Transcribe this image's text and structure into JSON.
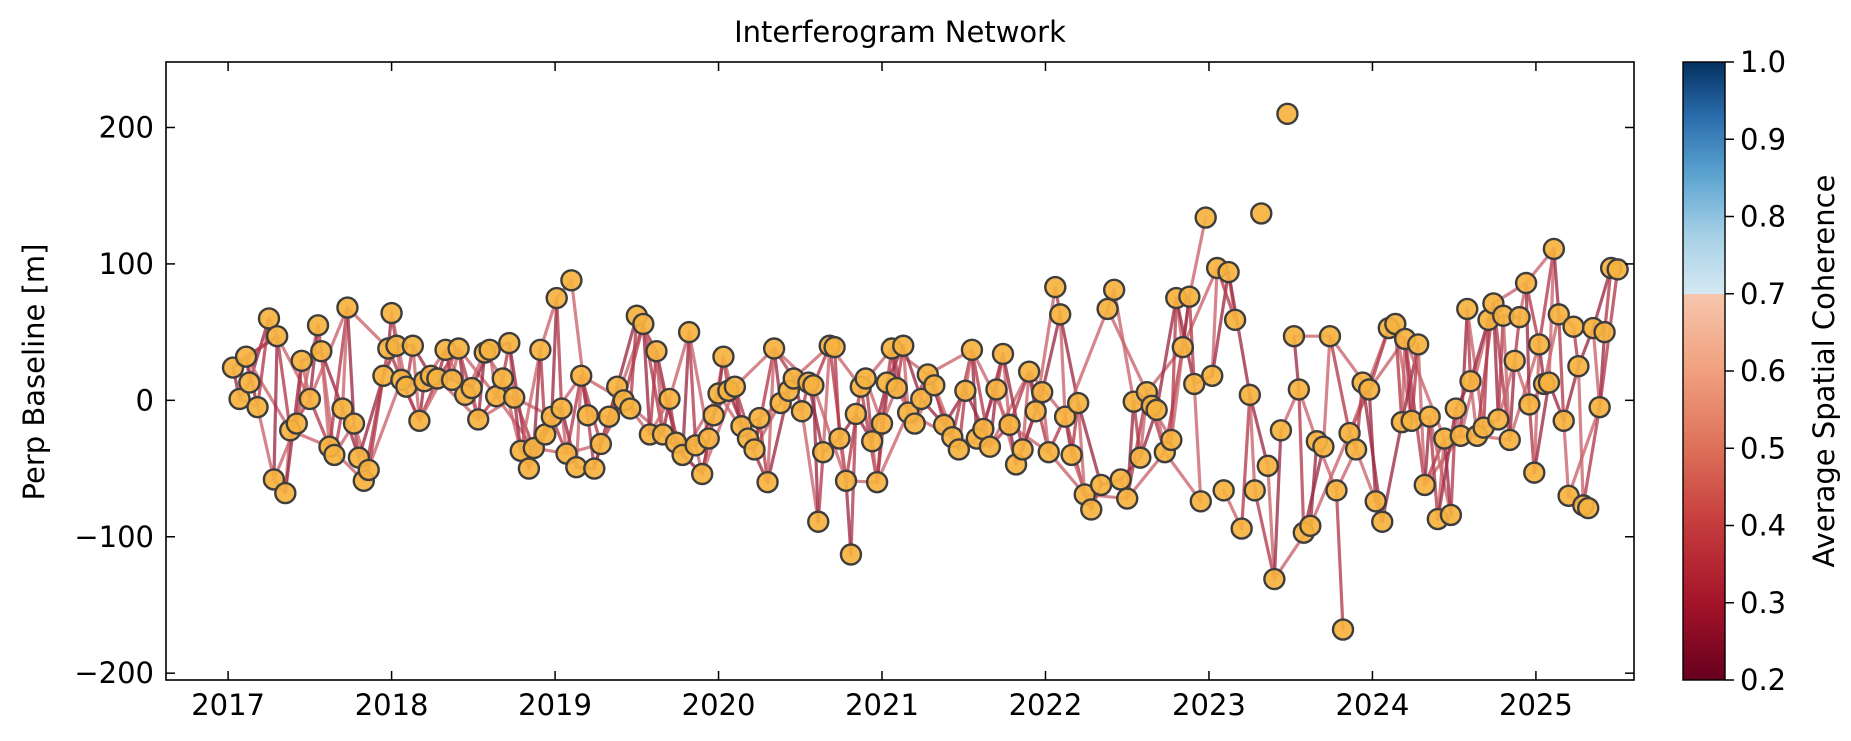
{
  "chart_data": {
    "type": "scatter",
    "title": "Interferogram Network",
    "xlabel": "",
    "ylabel": "Perp Baseline [m]",
    "x_ticks": [
      2017,
      2018,
      2019,
      2020,
      2021,
      2022,
      2023,
      2024,
      2025
    ],
    "y_ticks": [
      -200,
      -100,
      0,
      100,
      200
    ],
    "y_tick_labels": [
      "−200",
      "−100",
      "0",
      "100",
      "200"
    ],
    "xlim": [
      2016.62,
      2025.6
    ],
    "ylim": [
      -205,
      248
    ],
    "grid": false,
    "colorbar": {
      "label": "Average Spatial Coherence",
      "range": [
        0.2,
        1.0
      ],
      "ticks": [
        "0.2",
        "0.3",
        "0.4",
        "0.5",
        "0.6",
        "0.7",
        "0.8",
        "0.9",
        "1.0"
      ],
      "colormap": "RdBu"
    },
    "marker": {
      "fill": "#f6b23f",
      "edge": "#3d3d3d"
    },
    "edge_colors": [
      "#9b2c45",
      "#b23a4c",
      "#c9646c"
    ],
    "points": [
      [
        2017.03,
        24
      ],
      [
        2017.07,
        1
      ],
      [
        2017.13,
        13
      ],
      [
        2017.11,
        32
      ],
      [
        2017.18,
        -5
      ],
      [
        2017.25,
        60
      ],
      [
        2017.3,
        47
      ],
      [
        2017.28,
        -58
      ],
      [
        2017.35,
        -68
      ],
      [
        2017.38,
        -22
      ],
      [
        2017.42,
        -17
      ],
      [
        2017.45,
        29
      ],
      [
        2017.5,
        1
      ],
      [
        2017.55,
        55
      ],
      [
        2017.57,
        36
      ],
      [
        2017.62,
        -34
      ],
      [
        2017.65,
        -40
      ],
      [
        2017.7,
        -6
      ],
      [
        2017.73,
        68
      ],
      [
        2017.77,
        -17
      ],
      [
        2017.8,
        -42
      ],
      [
        2017.83,
        -59
      ],
      [
        2017.86,
        -51
      ],
      [
        2017.95,
        18
      ],
      [
        2017.98,
        38
      ],
      [
        2018.0,
        64
      ],
      [
        2018.03,
        40
      ],
      [
        2018.06,
        15
      ],
      [
        2018.09,
        10
      ],
      [
        2018.13,
        40
      ],
      [
        2018.17,
        -15
      ],
      [
        2018.2,
        14
      ],
      [
        2018.24,
        18
      ],
      [
        2018.28,
        16
      ],
      [
        2018.33,
        37
      ],
      [
        2018.37,
        15
      ],
      [
        2018.41,
        38
      ],
      [
        2018.45,
        4
      ],
      [
        2018.49,
        9
      ],
      [
        2018.53,
        -14
      ],
      [
        2018.57,
        35
      ],
      [
        2018.6,
        37
      ],
      [
        2018.64,
        3
      ],
      [
        2018.68,
        16
      ],
      [
        2018.72,
        42
      ],
      [
        2018.75,
        2
      ],
      [
        2018.79,
        -37
      ],
      [
        2018.84,
        -50
      ],
      [
        2018.87,
        -35
      ],
      [
        2018.91,
        37
      ],
      [
        2018.94,
        -25
      ],
      [
        2018.98,
        -12
      ],
      [
        2019.01,
        75
      ],
      [
        2019.04,
        -6
      ],
      [
        2019.07,
        -39
      ],
      [
        2019.1,
        88
      ],
      [
        2019.13,
        -49
      ],
      [
        2019.16,
        18
      ],
      [
        2019.2,
        -11
      ],
      [
        2019.24,
        -50
      ],
      [
        2019.28,
        -32
      ],
      [
        2019.33,
        -12
      ],
      [
        2019.38,
        10
      ],
      [
        2019.42,
        0
      ],
      [
        2019.46,
        -6
      ],
      [
        2019.5,
        62
      ],
      [
        2019.54,
        56
      ],
      [
        2019.58,
        -25
      ],
      [
        2019.62,
        36
      ],
      [
        2019.66,
        -25
      ],
      [
        2019.7,
        1
      ],
      [
        2019.74,
        -31
      ],
      [
        2019.78,
        -40
      ],
      [
        2019.82,
        50
      ],
      [
        2019.86,
        -33
      ],
      [
        2019.9,
        -54
      ],
      [
        2019.94,
        -28
      ],
      [
        2019.97,
        -11
      ],
      [
        2020.0,
        5
      ],
      [
        2020.03,
        32
      ],
      [
        2020.06,
        7
      ],
      [
        2020.1,
        10
      ],
      [
        2020.14,
        -19
      ],
      [
        2020.18,
        -28
      ],
      [
        2020.22,
        -36
      ],
      [
        2020.25,
        -13
      ],
      [
        2020.3,
        -60
      ],
      [
        2020.34,
        38
      ],
      [
        2020.38,
        -2
      ],
      [
        2020.43,
        7
      ],
      [
        2020.46,
        16
      ],
      [
        2020.51,
        -8
      ],
      [
        2020.55,
        13
      ],
      [
        2020.58,
        11
      ],
      [
        2020.61,
        -89
      ],
      [
        2020.64,
        -38
      ],
      [
        2020.68,
        40
      ],
      [
        2020.71,
        39
      ],
      [
        2020.74,
        -28
      ],
      [
        2020.78,
        -59
      ],
      [
        2020.81,
        -113
      ],
      [
        2020.84,
        -10
      ],
      [
        2020.87,
        10
      ],
      [
        2020.9,
        16
      ],
      [
        2020.94,
        -30
      ],
      [
        2020.97,
        -60
      ],
      [
        2021.0,
        -17
      ],
      [
        2021.03,
        13
      ],
      [
        2021.06,
        38
      ],
      [
        2021.09,
        9
      ],
      [
        2021.13,
        40
      ],
      [
        2021.16,
        -9
      ],
      [
        2021.2,
        -17
      ],
      [
        2021.24,
        1
      ],
      [
        2021.28,
        19
      ],
      [
        2021.32,
        11
      ],
      [
        2021.38,
        -18
      ],
      [
        2021.43,
        -27
      ],
      [
        2021.47,
        -36
      ],
      [
        2021.51,
        7
      ],
      [
        2021.55,
        37
      ],
      [
        2021.58,
        -28
      ],
      [
        2021.62,
        -21
      ],
      [
        2021.66,
        -34
      ],
      [
        2021.7,
        8
      ],
      [
        2021.74,
        34
      ],
      [
        2021.78,
        -18
      ],
      [
        2021.82,
        -47
      ],
      [
        2021.86,
        -36
      ],
      [
        2021.9,
        21
      ],
      [
        2021.94,
        -8
      ],
      [
        2021.98,
        6
      ],
      [
        2022.02,
        -38
      ],
      [
        2022.06,
        83
      ],
      [
        2022.09,
        63
      ],
      [
        2022.12,
        -12
      ],
      [
        2022.16,
        -40
      ],
      [
        2022.2,
        -2
      ],
      [
        2022.24,
        -69
      ],
      [
        2022.28,
        -80
      ],
      [
        2022.34,
        -62
      ],
      [
        2022.38,
        67
      ],
      [
        2022.42,
        81
      ],
      [
        2022.46,
        -58
      ],
      [
        2022.5,
        -72
      ],
      [
        2022.54,
        -1
      ],
      [
        2022.58,
        -42
      ],
      [
        2022.62,
        6
      ],
      [
        2022.65,
        -4
      ],
      [
        2022.68,
        -7
      ],
      [
        2022.73,
        -38
      ],
      [
        2022.77,
        -29
      ],
      [
        2022.8,
        75
      ],
      [
        2022.84,
        39
      ],
      [
        2022.88,
        76
      ],
      [
        2022.91,
        12
      ],
      [
        2022.95,
        -74
      ],
      [
        2022.98,
        134
      ],
      [
        2023.02,
        18
      ],
      [
        2023.05,
        97
      ],
      [
        2023.09,
        -66
      ],
      [
        2023.12,
        94
      ],
      [
        2023.16,
        59
      ],
      [
        2023.2,
        -94
      ],
      [
        2023.25,
        4
      ],
      [
        2023.28,
        -66
      ],
      [
        2023.32,
        137
      ],
      [
        2023.36,
        -48
      ],
      [
        2023.4,
        -131
      ],
      [
        2023.44,
        -22
      ],
      [
        2023.48,
        210
      ],
      [
        2023.52,
        47
      ],
      [
        2023.55,
        8
      ],
      [
        2023.58,
        -97
      ],
      [
        2023.62,
        -92
      ],
      [
        2023.66,
        -30
      ],
      [
        2023.7,
        -34
      ],
      [
        2023.74,
        47
      ],
      [
        2023.78,
        -66
      ],
      [
        2023.82,
        -168
      ],
      [
        2023.86,
        -24
      ],
      [
        2023.9,
        -36
      ],
      [
        2023.94,
        13
      ],
      [
        2023.98,
        8
      ],
      [
        2024.02,
        -74
      ],
      [
        2024.06,
        -89
      ],
      [
        2024.1,
        53
      ],
      [
        2024.14,
        56
      ],
      [
        2024.18,
        -16
      ],
      [
        2024.2,
        45
      ],
      [
        2024.24,
        -15
      ],
      [
        2024.28,
        41
      ],
      [
        2024.32,
        -62
      ],
      [
        2024.35,
        -12
      ],
      [
        2024.4,
        -87
      ],
      [
        2024.44,
        -28
      ],
      [
        2024.48,
        -84
      ],
      [
        2024.51,
        -6
      ],
      [
        2024.54,
        -26
      ],
      [
        2024.58,
        67
      ],
      [
        2024.6,
        14
      ],
      [
        2024.64,
        -26
      ],
      [
        2024.68,
        -20
      ],
      [
        2024.71,
        59
      ],
      [
        2024.74,
        71
      ],
      [
        2024.77,
        -14
      ],
      [
        2024.8,
        62
      ],
      [
        2024.84,
        -29
      ],
      [
        2024.87,
        29
      ],
      [
        2024.9,
        61
      ],
      [
        2024.94,
        86
      ],
      [
        2024.96,
        -3
      ],
      [
        2024.99,
        -53
      ],
      [
        2025.02,
        41
      ],
      [
        2025.05,
        12
      ],
      [
        2025.08,
        13
      ],
      [
        2025.11,
        111
      ],
      [
        2025.14,
        63
      ],
      [
        2025.17,
        -15
      ],
      [
        2025.2,
        -70
      ],
      [
        2025.23,
        54
      ],
      [
        2025.26,
        25
      ],
      [
        2025.29,
        -77
      ],
      [
        2025.32,
        -79
      ],
      [
        2025.35,
        53
      ],
      [
        2025.39,
        -5
      ],
      [
        2025.42,
        50
      ],
      [
        2025.46,
        97
      ],
      [
        2025.5,
        96
      ]
    ]
  }
}
